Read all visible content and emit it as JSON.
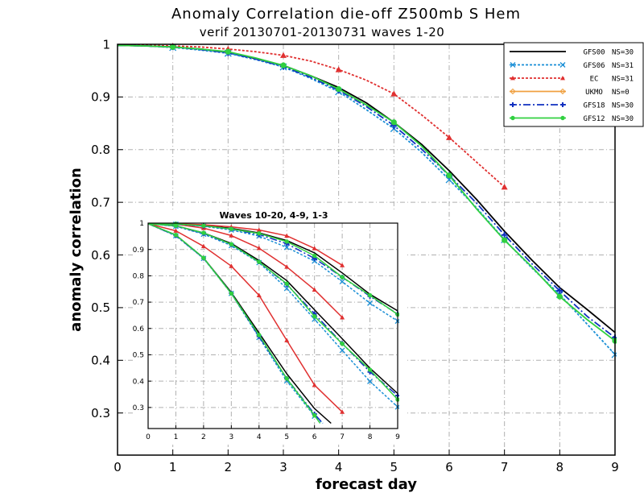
{
  "title": "Anomaly Correlation die-off   Z500mb S Hem",
  "subtitle": "verif 20130701-20130731  waves 1-20",
  "chart_data": [
    {
      "type": "line",
      "id": "main",
      "xlabel": "forecast day",
      "ylabel": "anomaly correlation",
      "xlim": [
        0,
        9
      ],
      "ylim": [
        0.22,
        1.0
      ],
      "x_ticks": [
        "0",
        "1",
        "2",
        "3",
        "4",
        "5",
        "6",
        "7",
        "8",
        "9"
      ],
      "y_ticks": [
        "1",
        "0.9",
        "0.8",
        "0.7",
        "0.6",
        "0.5",
        "0.4",
        "0.3"
      ],
      "grid": true,
      "legend_position": "top-right",
      "series": [
        {
          "name": "GFS00",
          "n": "NS=30",
          "color": "#000000",
          "dash": "",
          "marker": "none",
          "x": [
            0,
            0.5,
            1,
            1.5,
            2,
            2.5,
            3,
            3.5,
            4,
            4.5,
            5,
            5.5,
            6,
            6.5,
            7,
            7.5,
            8,
            8.5,
            9
          ],
          "y": [
            0.998,
            0.997,
            0.995,
            0.991,
            0.985,
            0.973,
            0.96,
            0.94,
            0.918,
            0.889,
            0.852,
            0.81,
            0.76,
            0.705,
            0.645,
            0.59,
            0.538,
            0.496,
            0.453
          ]
        },
        {
          "name": "GFS06",
          "n": "NS=31",
          "color": "#1a8fd6",
          "dash": "3,2",
          "marker": "x",
          "x": [
            0,
            0.5,
            1,
            1.5,
            2,
            2.5,
            3,
            3.5,
            4,
            4.5,
            5,
            5.5,
            6,
            6.5,
            7,
            7.5,
            8,
            8.5,
            9
          ],
          "y": [
            0.998,
            0.997,
            0.994,
            0.989,
            0.983,
            0.971,
            0.957,
            0.935,
            0.91,
            0.876,
            0.84,
            0.795,
            0.743,
            0.689,
            0.629,
            0.575,
            0.525,
            0.468,
            0.411
          ]
        },
        {
          "name": "EC",
          "n": "NS=31",
          "color": "#e03030",
          "dash": "3,2",
          "marker": "triangle",
          "x": [
            0,
            0.5,
            1,
            1.5,
            2,
            2.5,
            3,
            3.5,
            4,
            4.5,
            5,
            5.5,
            6,
            6.5,
            7
          ],
          "y": [
            0.999,
            0.998,
            0.997,
            0.995,
            0.991,
            0.986,
            0.979,
            0.968,
            0.952,
            0.932,
            0.906,
            0.866,
            0.823,
            0.776,
            0.729
          ]
        },
        {
          "name": "UKMO",
          "n": "NS=0",
          "color": "#f0a040",
          "dash": "",
          "marker": "diamond",
          "x": [],
          "y": []
        },
        {
          "name": "GFS18",
          "n": "NS=30",
          "color": "#1030c0",
          "dash": "9,3,2,3",
          "marker": "plus",
          "x": [
            0,
            0.5,
            1,
            1.5,
            2,
            2.5,
            3,
            3.5,
            4,
            4.5,
            5,
            5.5,
            6,
            6.5,
            7,
            7.5,
            8,
            8.5,
            9
          ],
          "y": [
            0.998,
            0.997,
            0.995,
            0.99,
            0.984,
            0.972,
            0.958,
            0.937,
            0.913,
            0.882,
            0.846,
            0.801,
            0.751,
            0.698,
            0.638,
            0.583,
            0.532,
            0.483,
            0.443
          ]
        },
        {
          "name": "GFS12",
          "n": "NS=30",
          "color": "#30d040",
          "dash": "",
          "marker": "circle",
          "x": [
            0,
            0.5,
            1,
            1.5,
            2,
            2.5,
            3,
            3.5,
            4,
            4.5,
            5,
            5.5,
            6,
            6.5,
            7,
            7.5,
            8,
            8.5,
            9
          ],
          "y": [
            0.998,
            0.997,
            0.995,
            0.991,
            0.986,
            0.974,
            0.96,
            0.94,
            0.915,
            0.885,
            0.852,
            0.807,
            0.751,
            0.687,
            0.628,
            0.577,
            0.521,
            0.477,
            0.437
          ]
        }
      ]
    },
    {
      "type": "line",
      "id": "inset",
      "title": "Waves 10-20, 4-9, 1-3",
      "xlim": [
        0,
        9
      ],
      "ylim": [
        0.22,
        1.0
      ],
      "x_ticks": [
        "0",
        "1",
        "2",
        "3",
        "4",
        "5",
        "6",
        "7",
        "8",
        "9"
      ],
      "y_ticks": [
        "1",
        "0.9",
        "0.8",
        "0.7",
        "0.6",
        "0.5",
        "0.4",
        "0.3"
      ],
      "grid": true,
      "series": [
        {
          "name": "GFS00 waves 1-3",
          "color": "#000000",
          "dash": "",
          "marker": "none",
          "x": [
            0,
            1,
            2,
            3,
            4,
            5,
            6,
            7,
            8,
            9
          ],
          "y": [
            0.999,
            0.997,
            0.991,
            0.98,
            0.963,
            0.934,
            0.887,
            0.811,
            0.73,
            0.667
          ]
        },
        {
          "name": "GFS00 waves 4-9",
          "color": "#000000",
          "dash": "",
          "marker": "none",
          "x": [
            0,
            1,
            2,
            3,
            4,
            5,
            6,
            7,
            8,
            9
          ],
          "y": [
            0.998,
            0.99,
            0.963,
            0.923,
            0.858,
            0.782,
            0.671,
            0.561,
            0.449,
            0.353
          ]
        },
        {
          "name": "GFS00 waves 10-20",
          "color": "#000000",
          "dash": "",
          "marker": "none",
          "x": [
            0,
            1,
            2,
            3,
            4,
            5,
            6,
            6.6
          ],
          "y": [
            0.998,
            0.955,
            0.868,
            0.737,
            0.583,
            0.428,
            0.296,
            0.24
          ]
        },
        {
          "name": "GFS06 waves 1-3",
          "color": "#1a8fd6",
          "dash": "3,2",
          "marker": "x",
          "x": [
            0,
            1,
            2,
            3,
            4,
            5,
            6,
            7,
            8,
            9
          ],
          "y": [
            0.998,
            0.996,
            0.988,
            0.974,
            0.951,
            0.908,
            0.856,
            0.778,
            0.696,
            0.628
          ]
        },
        {
          "name": "GFS06 waves 4-9",
          "color": "#1a8fd6",
          "dash": "3,2",
          "marker": "x",
          "x": [
            0,
            1,
            2,
            3,
            4,
            5,
            6,
            7,
            8,
            9
          ],
          "y": [
            0.998,
            0.988,
            0.958,
            0.915,
            0.85,
            0.752,
            0.635,
            0.517,
            0.399,
            0.302
          ]
        },
        {
          "name": "GFS06 waves 10-20",
          "color": "#1a8fd6",
          "dash": "3,2",
          "marker": "x",
          "x": [
            0,
            1,
            2,
            3,
            4,
            5,
            6,
            6.3
          ],
          "y": [
            0.998,
            0.952,
            0.866,
            0.733,
            0.566,
            0.401,
            0.267,
            0.24
          ]
        },
        {
          "name": "EC waves 1-3",
          "color": "#e03030",
          "dash": "",
          "marker": "triangle",
          "x": [
            0,
            1,
            2,
            3,
            4,
            5,
            6,
            7
          ],
          "y": [
            0.999,
            0.998,
            0.994,
            0.986,
            0.974,
            0.952,
            0.904,
            0.84
          ]
        },
        {
          "name": "EC waves 4-9",
          "color": "#e03030",
          "dash": "",
          "marker": "triangle",
          "x": [
            0,
            1,
            2,
            3,
            4,
            5,
            6,
            7
          ],
          "y": [
            0.999,
            0.996,
            0.981,
            0.953,
            0.905,
            0.834,
            0.747,
            0.642
          ]
        },
        {
          "name": "EC waves 10-20",
          "color": "#e03030",
          "dash": "",
          "marker": "triangle",
          "x": [
            0,
            1,
            2,
            3,
            4,
            5,
            6,
            7
          ],
          "y": [
            0.998,
            0.971,
            0.912,
            0.837,
            0.726,
            0.555,
            0.385,
            0.283
          ]
        },
        {
          "name": "GFS18 waves 1-3",
          "color": "#1030c0",
          "dash": "9,3,2,3",
          "marker": "plus",
          "x": [
            0,
            1,
            2,
            3,
            4,
            5,
            6,
            7,
            8,
            9
          ],
          "y": [
            0.998,
            0.996,
            0.989,
            0.977,
            0.957,
            0.922,
            0.866,
            0.795,
            0.722,
            0.655
          ]
        },
        {
          "name": "GFS18 waves 4-9",
          "color": "#1030c0",
          "dash": "9,3,2,3",
          "marker": "plus",
          "x": [
            0,
            1,
            2,
            3,
            4,
            5,
            6,
            7,
            8,
            9
          ],
          "y": [
            0.998,
            0.989,
            0.961,
            0.919,
            0.853,
            0.767,
            0.656,
            0.543,
            0.435,
            0.345
          ]
        },
        {
          "name": "GFS18 waves 10-20",
          "color": "#1030c0",
          "dash": "9,3,2,3",
          "marker": "plus",
          "x": [
            0,
            1,
            2,
            3,
            4,
            5,
            6,
            6.3
          ],
          "y": [
            0.998,
            0.953,
            0.867,
            0.734,
            0.57,
            0.41,
            0.275,
            0.24
          ]
        },
        {
          "name": "GFS12 waves 1-3",
          "color": "#30d040",
          "dash": "",
          "marker": "circle",
          "x": [
            0,
            1,
            2,
            3,
            4,
            5,
            6,
            7,
            8,
            9
          ],
          "y": [
            0.998,
            0.997,
            0.99,
            0.978,
            0.961,
            0.93,
            0.876,
            0.795,
            0.726,
            0.653
          ]
        },
        {
          "name": "GFS12 waves 4-9",
          "color": "#30d040",
          "dash": "",
          "marker": "circle",
          "x": [
            0,
            1,
            2,
            3,
            4,
            5,
            6,
            7,
            8,
            9
          ],
          "y": [
            0.998,
            0.99,
            0.963,
            0.92,
            0.853,
            0.77,
            0.646,
            0.542,
            0.443,
            0.33
          ]
        },
        {
          "name": "GFS12 waves 10-20",
          "color": "#30d040",
          "dash": "",
          "marker": "circle",
          "x": [
            0,
            1,
            2,
            3,
            4,
            5,
            6,
            6.2
          ],
          "y": [
            0.998,
            0.955,
            0.868,
            0.733,
            0.575,
            0.41,
            0.27,
            0.24
          ]
        }
      ]
    }
  ]
}
